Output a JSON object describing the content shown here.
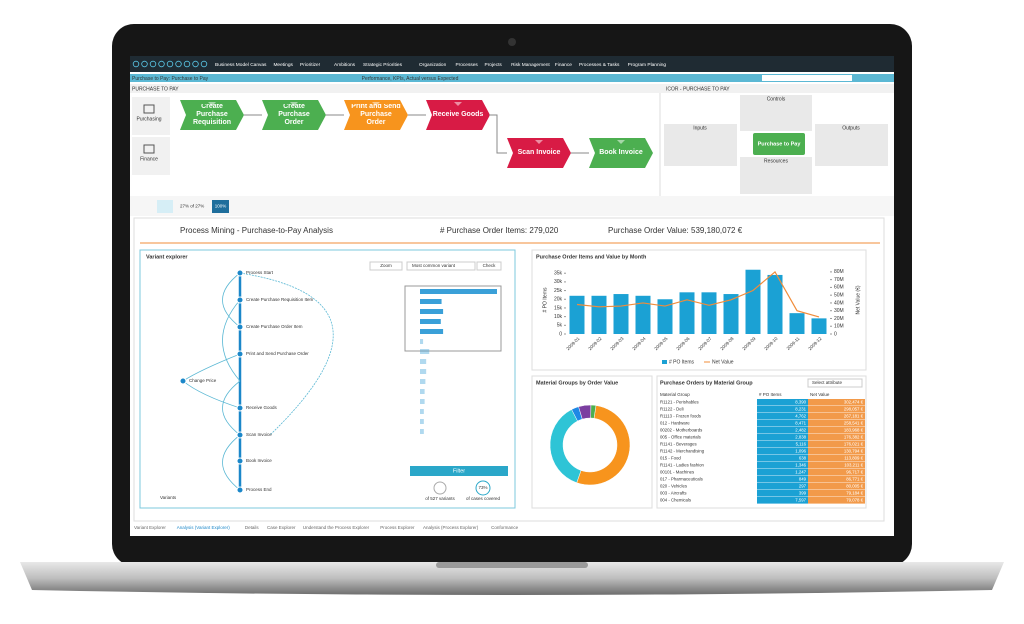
{
  "menu": {
    "items": [
      "Business Model Canvas",
      "Meetings",
      "Prioritize!",
      "Ambitions",
      "Strategic Priorities",
      "Organization",
      "Processes",
      "Projects",
      "Risk Management",
      "Finance",
      "Processes & Tasks",
      "Program Planning"
    ]
  },
  "breadcrumb": {
    "path": "Purchase to Pay: Purchase to Pay",
    "view": "Performance, KPIs, Actual versus Expected"
  },
  "process_panel": {
    "title": "PURCHASE TO PAY",
    "lanes": [
      {
        "name": "Purchasing",
        "steps": [
          {
            "label": "Create Purchase Requisition",
            "color": "#4caf50"
          },
          {
            "label": "Create Purchase Order",
            "color": "#4caf50"
          },
          {
            "label": "Print and Send Purchase Order",
            "color": "#f7941d"
          },
          {
            "label": "Receive Goods",
            "color": "#d81b45"
          }
        ]
      },
      {
        "name": "Finance",
        "steps": [
          {
            "label": "Scan Invoice",
            "color": "#d81b45"
          },
          {
            "label": "Book Invoice",
            "color": "#4caf50"
          }
        ]
      }
    ]
  },
  "icor": {
    "title": "ICOR - PURCHASE TO PAY",
    "controls": "Controls",
    "inputs": "Inputs",
    "outputs": "Outputs",
    "resources": "Resources",
    "process": "Purchase to Pay"
  },
  "toolbar": {
    "coverage": "27% of 27%",
    "zoom": "100%"
  },
  "dashboard": {
    "title": "Process Mining - Purchase-to-Pay Analysis",
    "kpi_items": "# Purchase Order Items: 279,020",
    "kpi_value": "Purchase Order Value: 539,180,072 €"
  },
  "variant_explorer": {
    "title": "Variant explorer",
    "zoom": "Zoom",
    "mode": "Most common variant",
    "check": "Check",
    "nodes": [
      "Process Start",
      "Create Purchase Requisition Item",
      "Create Purchase Order Item",
      "Print and Send Purchase Order",
      "Change Price",
      "Receive Goods",
      "Scan Invoice",
      "Book Invoice",
      "Process End"
    ],
    "filter": "Filter",
    "variants_note": "of 527 variants",
    "coverage": "73%",
    "coverage_note": "of cases covered",
    "footer": "Variants"
  },
  "chart_data": [
    {
      "type": "bar",
      "title": "Purchase Order Items and Value by Month",
      "categories": [
        "2009-01",
        "2009-02",
        "2009-03",
        "2009-04",
        "2009-05",
        "2009-06",
        "2009-07",
        "2009-08",
        "2009-09",
        "2009-10",
        "2009-11",
        "2009-12"
      ],
      "series": [
        {
          "name": "# PO Items",
          "color": "#1ba1d4",
          "values": [
            22000,
            22000,
            23000,
            22000,
            20000,
            24000,
            24000,
            23000,
            37000,
            34000,
            12000,
            9000
          ]
        },
        {
          "name": "Net Value",
          "color": "#f08c3a",
          "axis": "y2",
          "values": [
            38000000,
            35000000,
            36000000,
            40000000,
            36000000,
            44000000,
            37000000,
            44000000,
            56000000,
            80000000,
            30000000,
            22000000
          ]
        }
      ],
      "ylabel": "# PO Items",
      "y2label": "Net Value (€)",
      "ylim": [
        0,
        38000
      ],
      "yticks": [
        0,
        {
          "value": 5000,
          "label": "5k"
        },
        {
          "value": 10000,
          "label": "10k"
        },
        {
          "value": 15000,
          "label": "15k"
        },
        {
          "value": 20000,
          "label": "20k"
        },
        {
          "value": 25000,
          "label": "25k"
        },
        {
          "value": 30000,
          "label": "30k"
        },
        {
          "value": 35000,
          "label": "35k"
        }
      ],
      "y2lim": [
        0,
        85000000
      ],
      "y2ticks": [
        0,
        {
          "value": 10000000,
          "label": "10M"
        },
        {
          "value": 20000000,
          "label": "20M"
        },
        {
          "value": 30000000,
          "label": "30M"
        },
        {
          "value": 40000000,
          "label": "40M"
        },
        {
          "value": 50000000,
          "label": "50M"
        },
        {
          "value": 60000000,
          "label": "60M"
        },
        {
          "value": 70000000,
          "label": "70M"
        },
        {
          "value": 80000000,
          "label": "80M"
        }
      ]
    },
    {
      "type": "pie",
      "title": "Material Groups by Order Value",
      "values": [
        53,
        37,
        3,
        5,
        2
      ],
      "colors": [
        "#f7941d",
        "#2ec4d6",
        "#1e88e5",
        "#7b3fa0",
        "#4caf50"
      ]
    },
    {
      "type": "hbar",
      "values": [
        100,
        28,
        30,
        27,
        30,
        4,
        12,
        8,
        8,
        7,
        6,
        6,
        5,
        5,
        5
      ],
      "xlim": [
        0,
        100
      ],
      "color": "#3aa0d8"
    }
  ],
  "table": {
    "title": "Purchase Orders by Material Group",
    "select": "Select attribute",
    "columns": [
      "Material Group",
      "# PO Items",
      "Net Value"
    ],
    "rows": [
      [
        "R1121 - Perishables",
        "8,390",
        "302,474 €"
      ],
      [
        "R1122 - Deli",
        "8,231",
        "298,057 €"
      ],
      [
        "R1113 - Frozen foods",
        "4,762",
        "267,181 €"
      ],
      [
        "012 - Hardware",
        "8,471",
        "258,541 €"
      ],
      [
        "00202 - Motherboards",
        "2,482",
        "183,968 €"
      ],
      [
        "005 - Office materials",
        "2,838",
        "176,382 €"
      ],
      [
        "R1141 - Beverages",
        "5,116",
        "176,021 €"
      ],
      [
        "R1142 - Merchandising",
        "1,096",
        "130,794 €"
      ],
      [
        "015 - Food",
        "638",
        "113,809 €"
      ],
      [
        "R1141 - Ladies fashion",
        "1,346",
        "103,211 €"
      ],
      [
        "00101 - Machines",
        "1,247",
        "96,717 €"
      ],
      [
        "017 - Pharmaceuticals",
        "849",
        "86,771 €"
      ],
      [
        "020 - Vehicles",
        "297",
        "80,005 €"
      ],
      [
        "003 - Aircrafts",
        "399",
        "79,184 €"
      ],
      [
        "004 - Chemicals",
        "7,597",
        "79,078 €"
      ]
    ]
  },
  "tabs": [
    "Variant Explorer",
    "Analysis (Variant Explorer)",
    "Details",
    "Case Explorer",
    "Understand the Process Explorer",
    "Process Explorer",
    "Analysis (Process Explorer)",
    "Conformance"
  ]
}
